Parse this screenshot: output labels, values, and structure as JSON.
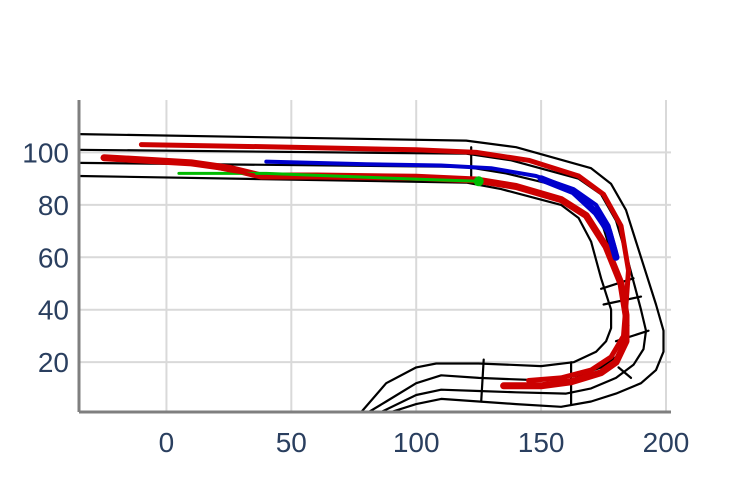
{
  "chart_data": {
    "type": "line",
    "title": "",
    "xlabel": "",
    "ylabel": "",
    "xlim": [
      -35,
      202
    ],
    "ylim": [
      1,
      120
    ],
    "xticks": [
      0,
      50,
      100,
      150,
      200
    ],
    "yticks": [
      20,
      40,
      60,
      80,
      100
    ],
    "xtick_labels": [
      "0",
      "50",
      "100",
      "150",
      "200"
    ],
    "ytick_labels": [
      "20",
      "40",
      "60",
      "80",
      100
    ],
    "grid": true,
    "legend": "none",
    "road": {
      "boundaries": [
        [
          [
            -35,
            107
          ],
          [
            120,
            104.5
          ],
          [
            140,
            102
          ],
          [
            170,
            94
          ],
          [
            178,
            88
          ],
          [
            184,
            78
          ],
          [
            190,
            60
          ],
          [
            196,
            42
          ],
          [
            199,
            32
          ],
          [
            199,
            24
          ],
          [
            196,
            17
          ],
          [
            190,
            12
          ],
          [
            180,
            8
          ],
          [
            170,
            5
          ],
          [
            158,
            3
          ],
          [
            140,
            4
          ],
          [
            125,
            5
          ],
          [
            110,
            6
          ],
          [
            100,
            4
          ],
          [
            90,
            1
          ]
        ],
        [
          [
            -35,
            101
          ],
          [
            120,
            99.5
          ],
          [
            138,
            97
          ],
          [
            165,
            90
          ],
          [
            174,
            84
          ],
          [
            180,
            74
          ],
          [
            185,
            58
          ],
          [
            190,
            40
          ],
          [
            192,
            32
          ],
          [
            191,
            25
          ],
          [
            187,
            19
          ],
          [
            180,
            14
          ],
          [
            170,
            10
          ],
          [
            160,
            8
          ],
          [
            140,
            8.5
          ],
          [
            125,
            9
          ],
          [
            110,
            9.5
          ],
          [
            100,
            7.5
          ],
          [
            86,
            1
          ]
        ],
        [
          [
            -35,
            96
          ],
          [
            120,
            94.5
          ],
          [
            136,
            92
          ],
          [
            162,
            86
          ],
          [
            170,
            80
          ],
          [
            175,
            71
          ],
          [
            180,
            56
          ],
          [
            184,
            42
          ],
          [
            185,
            34
          ],
          [
            184,
            27
          ],
          [
            180,
            22
          ],
          [
            174,
            18
          ],
          [
            165,
            15
          ],
          [
            152,
            13
          ],
          [
            138,
            13.5
          ],
          [
            125,
            14
          ],
          [
            110,
            15
          ],
          [
            100,
            12
          ],
          [
            88,
            5
          ],
          [
            81,
            1
          ]
        ],
        [
          [
            -35,
            91
          ],
          [
            120,
            88.5
          ],
          [
            134,
            86
          ],
          [
            158,
            80
          ],
          [
            165,
            75
          ],
          [
            170,
            66
          ],
          [
            174,
            52
          ],
          [
            178,
            40
          ],
          [
            178,
            33
          ],
          [
            176,
            28
          ],
          [
            172,
            24
          ],
          [
            163,
            20
          ],
          [
            150,
            18.5
          ],
          [
            138,
            19
          ],
          [
            125,
            19.5
          ],
          [
            108,
            19.5
          ],
          [
            100,
            18
          ],
          [
            88,
            12
          ],
          [
            78,
            1
          ]
        ]
      ],
      "dividers": [
        [
          [
            122,
            102
          ],
          [
            122,
            88.5
          ]
        ],
        [
          [
            127,
            21
          ],
          [
            126,
            5
          ]
        ],
        [
          [
            162,
            20
          ],
          [
            162,
            4
          ]
        ],
        [
          [
            174,
            48
          ],
          [
            187,
            52
          ]
        ],
        [
          [
            175,
            42
          ],
          [
            190,
            45
          ]
        ],
        [
          [
            180,
            28
          ],
          [
            193,
            32
          ]
        ],
        [
          [
            181,
            18
          ],
          [
            186,
            14
          ]
        ]
      ]
    },
    "series": [
      {
        "color": "#cc0000",
        "width": 7,
        "points": [
          [
            -25,
            98
          ],
          [
            10,
            96
          ],
          [
            25,
            94
          ],
          [
            38,
            91
          ],
          [
            60,
            91
          ],
          [
            100,
            90.5
          ],
          [
            124,
            89.5
          ],
          [
            140,
            87
          ],
          [
            158,
            82
          ],
          [
            168,
            76
          ],
          [
            176,
            64
          ],
          [
            182,
            50
          ],
          [
            184,
            38
          ],
          [
            184,
            28
          ],
          [
            180,
            20
          ],
          [
            174,
            16
          ],
          [
            162,
            12.5
          ],
          [
            150,
            11
          ],
          [
            135,
            11
          ]
        ]
      },
      {
        "color": "#cc0000",
        "width": 5,
        "points": [
          [
            -10,
            103
          ],
          [
            50,
            102
          ],
          [
            100,
            101
          ],
          [
            124,
            100
          ],
          [
            145,
            97
          ],
          [
            165,
            91
          ],
          [
            175,
            84
          ],
          [
            182,
            72
          ],
          [
            185,
            55
          ],
          [
            184,
            42
          ],
          [
            183,
            30
          ],
          [
            178,
            22
          ],
          [
            170,
            17
          ],
          [
            158,
            14
          ],
          [
            145,
            13
          ]
        ]
      },
      {
        "color": "#0000cc",
        "width": 4,
        "points": [
          [
            40,
            96.5
          ],
          [
            80,
            95.5
          ],
          [
            110,
            95
          ],
          [
            130,
            94
          ],
          [
            148,
            91
          ],
          [
            163,
            86
          ],
          [
            172,
            80
          ],
          [
            177,
            72
          ],
          [
            180,
            62
          ]
        ]
      },
      {
        "color": "#0000cc",
        "width": 7,
        "points": [
          [
            150,
            90
          ],
          [
            163,
            85
          ],
          [
            172,
            77
          ],
          [
            177,
            70
          ],
          [
            180,
            60
          ]
        ]
      },
      {
        "color": "#00bb00",
        "width": 3,
        "points": [
          [
            5,
            92
          ],
          [
            40,
            92
          ],
          [
            80,
            90.5
          ],
          [
            110,
            89.5
          ],
          [
            125,
            89
          ]
        ]
      },
      {
        "color": "#cc0000",
        "width": 3,
        "points": [
          [
            35,
            91.5
          ],
          [
            25,
            93
          ],
          [
            15,
            95
          ],
          [
            0,
            96.5
          ],
          [
            -20,
            97.5
          ],
          [
            -25,
            98
          ]
        ]
      }
    ],
    "markers": [
      {
        "color": "#00bb00",
        "x": 125,
        "y": 89
      }
    ]
  }
}
